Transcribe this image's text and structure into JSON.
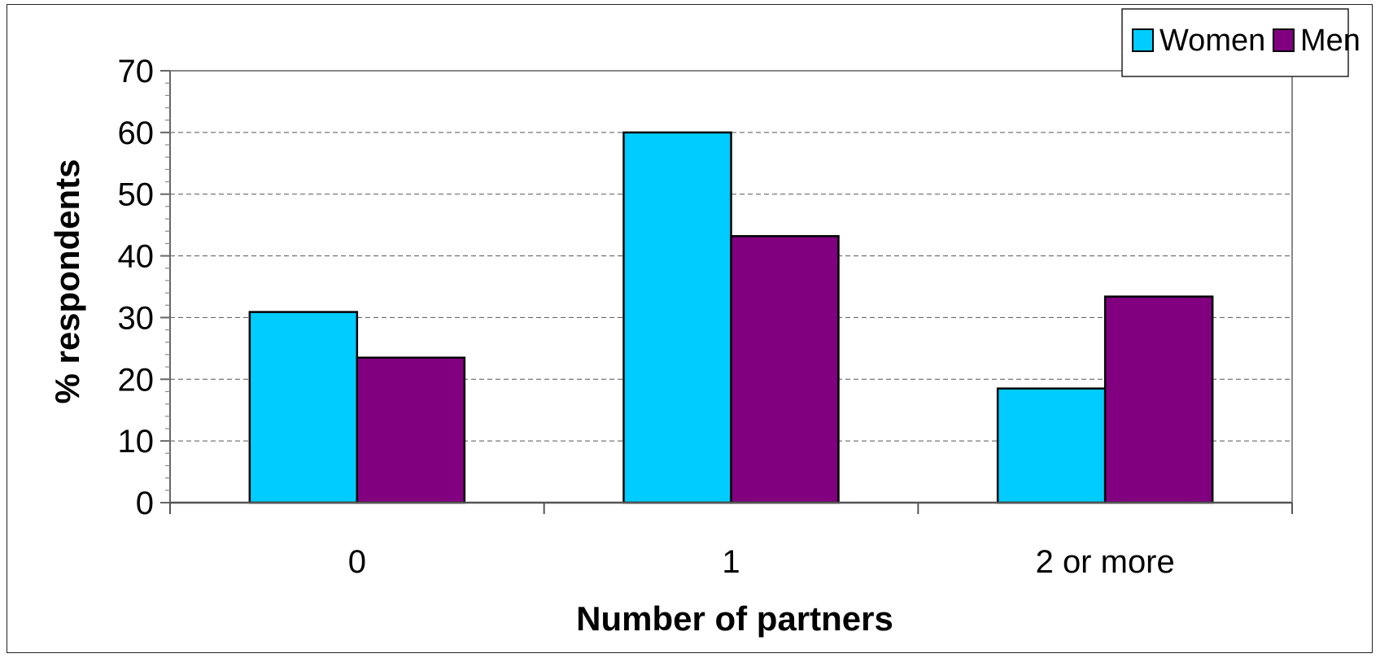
{
  "chart_data": {
    "type": "bar",
    "title": "",
    "categories": [
      "0",
      "1",
      "2 or more"
    ],
    "series": [
      {
        "name": "Women",
        "values": [
          30.9,
          60.0,
          18.5
        ],
        "color": "#00CCFF"
      },
      {
        "name": "Men",
        "values": [
          23.5,
          43.2,
          33.4
        ],
        "color": "#800080"
      }
    ],
    "xlabel": "Number of partners",
    "ylabel": "% respondents",
    "ylim": [
      0,
      70
    ],
    "yticks": [
      0,
      10,
      20,
      30,
      40,
      50,
      60,
      70
    ],
    "grid": "dashed horizontal",
    "legend_position": "top-right"
  }
}
